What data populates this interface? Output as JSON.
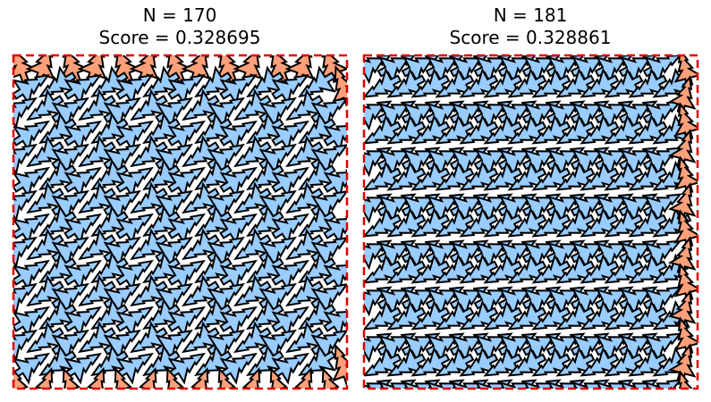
{
  "panels": [
    {
      "title": "N = 170",
      "subtitle": "Score = 0.328695"
    },
    {
      "title": "N = 181",
      "subtitle": "Score = 0.328861"
    }
  ]
}
